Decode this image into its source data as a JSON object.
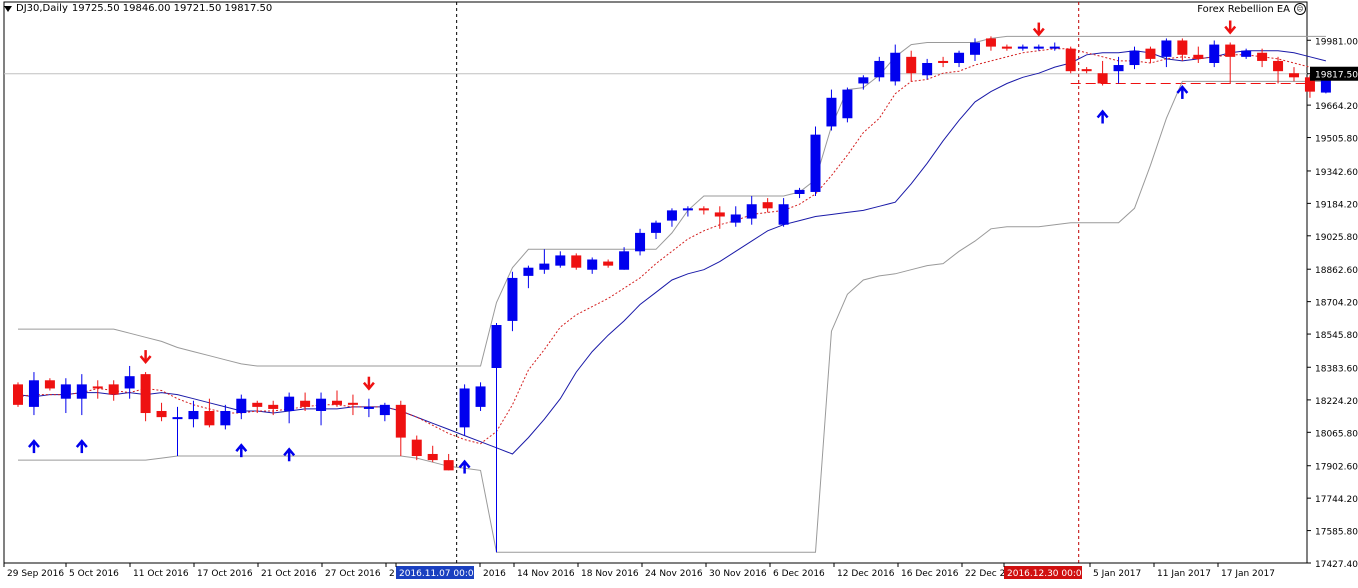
{
  "header": {
    "symbol": "DJ30,Daily",
    "ohlc": "19725.50 19846.00 19721.50 19817.50"
  },
  "expert": {
    "name": "Forex Rebellion EA"
  },
  "colors": {
    "bull": "#0000ee",
    "bear": "#ee1111",
    "ma_fast": "#d42020",
    "ma_slow": "#1a1aa8",
    "band": "#9a9a9a",
    "arrow_up": "#0000ee",
    "arrow_down": "#ee1111"
  },
  "chart_data": {
    "type": "candlestick",
    "title": "",
    "ylim": [
      17427.4,
      20080
    ],
    "y_ticks": [
      "19981.00",
      "19817.50",
      "19664.20",
      "19505.80",
      "19342.60",
      "19184.20",
      "19025.80",
      "18862.60",
      "18704.20",
      "18545.80",
      "18383.60",
      "18224.20",
      "18065.80",
      "17902.60",
      "17744.20",
      "17585.80",
      "17427.40"
    ],
    "current_price": "19817.50",
    "x_labels": [
      "29 Sep 2016",
      "5 Oct 2016",
      "11 Oct 2016",
      "17 Oct 2016",
      "21 Oct 2016",
      "27 Oct 2016",
      "2",
      "2016.11.07 00:00",
      "2016",
      "14 Nov 2016",
      "18 Nov 2016",
      "24 Nov 2016",
      "30 Nov 2016",
      "6 Dec 2016",
      "12 Dec 2016",
      "16 Dec 2016",
      "22 Dec 2",
      "2016.12.30 00:00",
      "5 Jan 2017",
      "11 Jan 2017",
      "17 Jan 2017"
    ],
    "candles": [
      {
        "o": 18300,
        "h": 18310,
        "l": 18190,
        "c": 18200
      },
      {
        "o": 18190,
        "h": 18360,
        "l": 18150,
        "c": 18320
      },
      {
        "o": 18320,
        "h": 18330,
        "l": 18270,
        "c": 18280
      },
      {
        "o": 18230,
        "h": 18330,
        "l": 18160,
        "c": 18300
      },
      {
        "o": 18230,
        "h": 18350,
        "l": 18150,
        "c": 18300
      },
      {
        "o": 18290,
        "h": 18320,
        "l": 18230,
        "c": 18280
      },
      {
        "o": 18300,
        "h": 18320,
        "l": 18220,
        "c": 18250
      },
      {
        "o": 18280,
        "h": 18390,
        "l": 18230,
        "c": 18340
      },
      {
        "o": 18350,
        "h": 18360,
        "l": 18120,
        "c": 18160
      },
      {
        "o": 18170,
        "h": 18210,
        "l": 18120,
        "c": 18140
      },
      {
        "o": 18140,
        "h": 18190,
        "l": 17950,
        "c": 18140
      },
      {
        "o": 18130,
        "h": 18220,
        "l": 18090,
        "c": 18170
      },
      {
        "o": 18170,
        "h": 18230,
        "l": 18090,
        "c": 18100
      },
      {
        "o": 18100,
        "h": 18200,
        "l": 18080,
        "c": 18170
      },
      {
        "o": 18160,
        "h": 18250,
        "l": 18130,
        "c": 18230
      },
      {
        "o": 18210,
        "h": 18220,
        "l": 18160,
        "c": 18190
      },
      {
        "o": 18200,
        "h": 18220,
        "l": 18150,
        "c": 18180
      },
      {
        "o": 18170,
        "h": 18260,
        "l": 18110,
        "c": 18240
      },
      {
        "o": 18220,
        "h": 18260,
        "l": 18170,
        "c": 18190
      },
      {
        "o": 18170,
        "h": 18260,
        "l": 18100,
        "c": 18230
      },
      {
        "o": 18220,
        "h": 18270,
        "l": 18190,
        "c": 18200
      },
      {
        "o": 18210,
        "h": 18250,
        "l": 18150,
        "c": 18200
      },
      {
        "o": 18180,
        "h": 18230,
        "l": 18140,
        "c": 18190
      },
      {
        "o": 18150,
        "h": 18210,
        "l": 18120,
        "c": 18200
      },
      {
        "o": 18200,
        "h": 18220,
        "l": 17950,
        "c": 18040
      },
      {
        "o": 18030,
        "h": 18050,
        "l": 17930,
        "c": 17950
      },
      {
        "o": 17960,
        "h": 18000,
        "l": 17920,
        "c": 17930
      },
      {
        "o": 17930,
        "h": 17960,
        "l": 17880,
        "c": 17880
      },
      {
        "o": 18090,
        "h": 18300,
        "l": 18050,
        "c": 18280
      },
      {
        "o": 18190,
        "h": 18310,
        "l": 18170,
        "c": 18290
      },
      {
        "o": 18380,
        "h": 18600,
        "l": 17480,
        "c": 18590
      },
      {
        "o": 18610,
        "h": 18850,
        "l": 18560,
        "c": 18820
      },
      {
        "o": 18830,
        "h": 18880,
        "l": 18770,
        "c": 18870
      },
      {
        "o": 18860,
        "h": 18960,
        "l": 18840,
        "c": 18890
      },
      {
        "o": 18880,
        "h": 18950,
        "l": 18870,
        "c": 18930
      },
      {
        "o": 18930,
        "h": 18940,
        "l": 18860,
        "c": 18870
      },
      {
        "o": 18860,
        "h": 18920,
        "l": 18840,
        "c": 18910
      },
      {
        "o": 18900,
        "h": 18910,
        "l": 18870,
        "c": 18880
      },
      {
        "o": 18860,
        "h": 18970,
        "l": 18860,
        "c": 18950
      },
      {
        "o": 18950,
        "h": 19060,
        "l": 18930,
        "c": 19040
      },
      {
        "o": 19040,
        "h": 19100,
        "l": 19010,
        "c": 19090
      },
      {
        "o": 19100,
        "h": 19160,
        "l": 19070,
        "c": 19150
      },
      {
        "o": 19150,
        "h": 19170,
        "l": 19120,
        "c": 19160
      },
      {
        "o": 19160,
        "h": 19170,
        "l": 19130,
        "c": 19150
      },
      {
        "o": 19140,
        "h": 19170,
        "l": 19060,
        "c": 19120
      },
      {
        "o": 19090,
        "h": 19170,
        "l": 19070,
        "c": 19130
      },
      {
        "o": 19110,
        "h": 19220,
        "l": 19080,
        "c": 19180
      },
      {
        "o": 19190,
        "h": 19210,
        "l": 19140,
        "c": 19160
      },
      {
        "o": 19080,
        "h": 19210,
        "l": 19070,
        "c": 19180
      },
      {
        "o": 19230,
        "h": 19260,
        "l": 19210,
        "c": 19250
      },
      {
        "o": 19240,
        "h": 19560,
        "l": 19220,
        "c": 19520
      },
      {
        "o": 19560,
        "h": 19740,
        "l": 19540,
        "c": 19700
      },
      {
        "o": 19600,
        "h": 19750,
        "l": 19580,
        "c": 19740
      },
      {
        "o": 19770,
        "h": 19810,
        "l": 19740,
        "c": 19800
      },
      {
        "o": 19800,
        "h": 19900,
        "l": 19780,
        "c": 19880
      },
      {
        "o": 19780,
        "h": 19960,
        "l": 19760,
        "c": 19920
      },
      {
        "o": 19900,
        "h": 19930,
        "l": 19780,
        "c": 19820
      },
      {
        "o": 19810,
        "h": 19890,
        "l": 19790,
        "c": 19870
      },
      {
        "o": 19880,
        "h": 19900,
        "l": 19850,
        "c": 19870
      },
      {
        "o": 19870,
        "h": 19930,
        "l": 19850,
        "c": 19920
      },
      {
        "o": 19910,
        "h": 19990,
        "l": 19880,
        "c": 19970
      },
      {
        "o": 19990,
        "h": 20000,
        "l": 19930,
        "c": 19950
      },
      {
        "o": 19950,
        "h": 19960,
        "l": 19930,
        "c": 19940
      },
      {
        "o": 19940,
        "h": 19960,
        "l": 19930,
        "c": 19950
      },
      {
        "o": 19940,
        "h": 19960,
        "l": 19930,
        "c": 19950
      },
      {
        "o": 19950,
        "h": 19970,
        "l": 19930,
        "c": 19950
      },
      {
        "o": 19940,
        "h": 19950,
        "l": 19820,
        "c": 19830
      },
      {
        "o": 19840,
        "h": 19850,
        "l": 19820,
        "c": 19830
      },
      {
        "o": 19820,
        "h": 19880,
        "l": 19760,
        "c": 19770
      },
      {
        "o": 19830,
        "h": 19900,
        "l": 19770,
        "c": 19860
      },
      {
        "o": 19860,
        "h": 19950,
        "l": 19840,
        "c": 19930
      },
      {
        "o": 19940,
        "h": 19950,
        "l": 19870,
        "c": 19890
      },
      {
        "o": 19900,
        "h": 19990,
        "l": 19850,
        "c": 19980
      },
      {
        "o": 19980,
        "h": 19990,
        "l": 19880,
        "c": 19910
      },
      {
        "o": 19910,
        "h": 19950,
        "l": 19870,
        "c": 19890
      },
      {
        "o": 19870,
        "h": 19980,
        "l": 19850,
        "c": 19960
      },
      {
        "o": 19960,
        "h": 19970,
        "l": 19770,
        "c": 19900
      },
      {
        "o": 19900,
        "h": 19940,
        "l": 19890,
        "c": 19930
      },
      {
        "o": 19920,
        "h": 19940,
        "l": 19850,
        "c": 19880
      },
      {
        "o": 19880,
        "h": 19900,
        "l": 19770,
        "c": 19830
      },
      {
        "o": 19820,
        "h": 19850,
        "l": 19780,
        "c": 19800
      },
      {
        "o": 19800,
        "h": 19810,
        "l": 19700,
        "c": 19730
      },
      {
        "o": 19725.5,
        "h": 19846,
        "l": 19721.5,
        "c": 19817.5
      }
    ],
    "ma_fast": [
      18240,
      18250,
      18250,
      18250,
      18260,
      18280,
      18270,
      18260,
      18280,
      18270,
      18230,
      18200,
      18180,
      18160,
      18160,
      18170,
      18170,
      18180,
      18190,
      18200,
      18200,
      18190,
      18190,
      18190,
      18170,
      18140,
      18100,
      18060,
      18030,
      18010,
      18070,
      18200,
      18370,
      18470,
      18580,
      18640,
      18680,
      18720,
      18770,
      18820,
      18890,
      18950,
      19010,
      19050,
      19080,
      19100,
      19130,
      19140,
      19150,
      19180,
      19230,
      19320,
      19420,
      19530,
      19600,
      19720,
      19780,
      19790,
      19820,
      19830,
      19860,
      19880,
      19900,
      19920,
      19930,
      19940,
      19940,
      19920,
      19900,
      19880,
      19880,
      19870,
      19890,
      19900,
      19890,
      19900,
      19910,
      19910,
      19900,
      19890,
      19870,
      19850,
      19830
    ],
    "ma_slow": [
      18250,
      18240,
      18250,
      18250,
      18260,
      18260,
      18250,
      18260,
      18250,
      18260,
      18250,
      18230,
      18210,
      18190,
      18170,
      18170,
      18160,
      18170,
      18180,
      18180,
      18180,
      18190,
      18190,
      18190,
      18170,
      18140,
      18110,
      18080,
      18050,
      18020,
      17990,
      17960,
      18040,
      18130,
      18230,
      18360,
      18460,
      18540,
      18610,
      18690,
      18750,
      18810,
      18840,
      18860,
      18900,
      18950,
      19000,
      19050,
      19080,
      19100,
      19120,
      19130,
      19140,
      19150,
      19170,
      19190,
      19280,
      19380,
      19490,
      19590,
      19680,
      19730,
      19770,
      19800,
      19820,
      19850,
      19870,
      19910,
      19920,
      19920,
      19930,
      19920,
      19890,
      19880,
      19890,
      19900,
      19920,
      19930,
      19930,
      19930,
      19920,
      19900,
      19880
    ],
    "env_upper": [
      18570,
      18570,
      18570,
      18570,
      18570,
      18570,
      18570,
      18550,
      18530,
      18510,
      18480,
      18460,
      18440,
      18420,
      18400,
      18390,
      18390,
      18390,
      18390,
      18390,
      18390,
      18390,
      18390,
      18390,
      18390,
      18390,
      18390,
      18390,
      18390,
      18390,
      18700,
      18870,
      18960,
      18960,
      18960,
      18960,
      18960,
      18960,
      18960,
      18960,
      18960,
      19040,
      19150,
      19220,
      19220,
      19220,
      19220,
      19220,
      19220,
      19240,
      19300,
      19560,
      19740,
      19750,
      19810,
      19900,
      19960,
      19970,
      19970,
      19970,
      19970,
      19990,
      20000,
      20000,
      20000,
      20000,
      20000,
      20000,
      20000,
      20000,
      20000,
      20000,
      20000,
      20000,
      20000,
      20000,
      20000,
      20000,
      20000,
      20000,
      20000,
      20000,
      20000
    ],
    "env_lower": [
      17930,
      17930,
      17930,
      17930,
      17930,
      17930,
      17930,
      17930,
      17930,
      17940,
      17950,
      17950,
      17950,
      17950,
      17950,
      17950,
      17950,
      17950,
      17950,
      17950,
      17950,
      17950,
      17950,
      17950,
      17950,
      17940,
      17920,
      17900,
      17890,
      17880,
      17480,
      17480,
      17480,
      17480,
      17480,
      17480,
      17480,
      17480,
      17480,
      17480,
      17480,
      17480,
      17480,
      17480,
      17480,
      17480,
      17480,
      17480,
      17480,
      17480,
      17480,
      18560,
      18740,
      18810,
      18830,
      18840,
      18860,
      18880,
      18890,
      18950,
      19000,
      19060,
      19070,
      19070,
      19070,
      19080,
      19090,
      19090,
      19090,
      19090,
      19160,
      19370,
      19600,
      19780,
      19780,
      19780,
      19780,
      19780,
      19780,
      19780,
      19780,
      19780,
      19780
    ],
    "signals": [
      {
        "i": 1,
        "dir": "up"
      },
      {
        "i": 4,
        "dir": "up"
      },
      {
        "i": 8,
        "dir": "down"
      },
      {
        "i": 14,
        "dir": "up"
      },
      {
        "i": 17,
        "dir": "up"
      },
      {
        "i": 22,
        "dir": "down"
      },
      {
        "i": 28,
        "dir": "up"
      },
      {
        "i": 64,
        "dir": "down"
      },
      {
        "i": 68,
        "dir": "up"
      },
      {
        "i": 73,
        "dir": "up"
      },
      {
        "i": 76,
        "dir": "down"
      }
    ],
    "vlines": [
      27,
      66
    ],
    "support_level": 19770,
    "support_from": 66,
    "grid": false
  }
}
